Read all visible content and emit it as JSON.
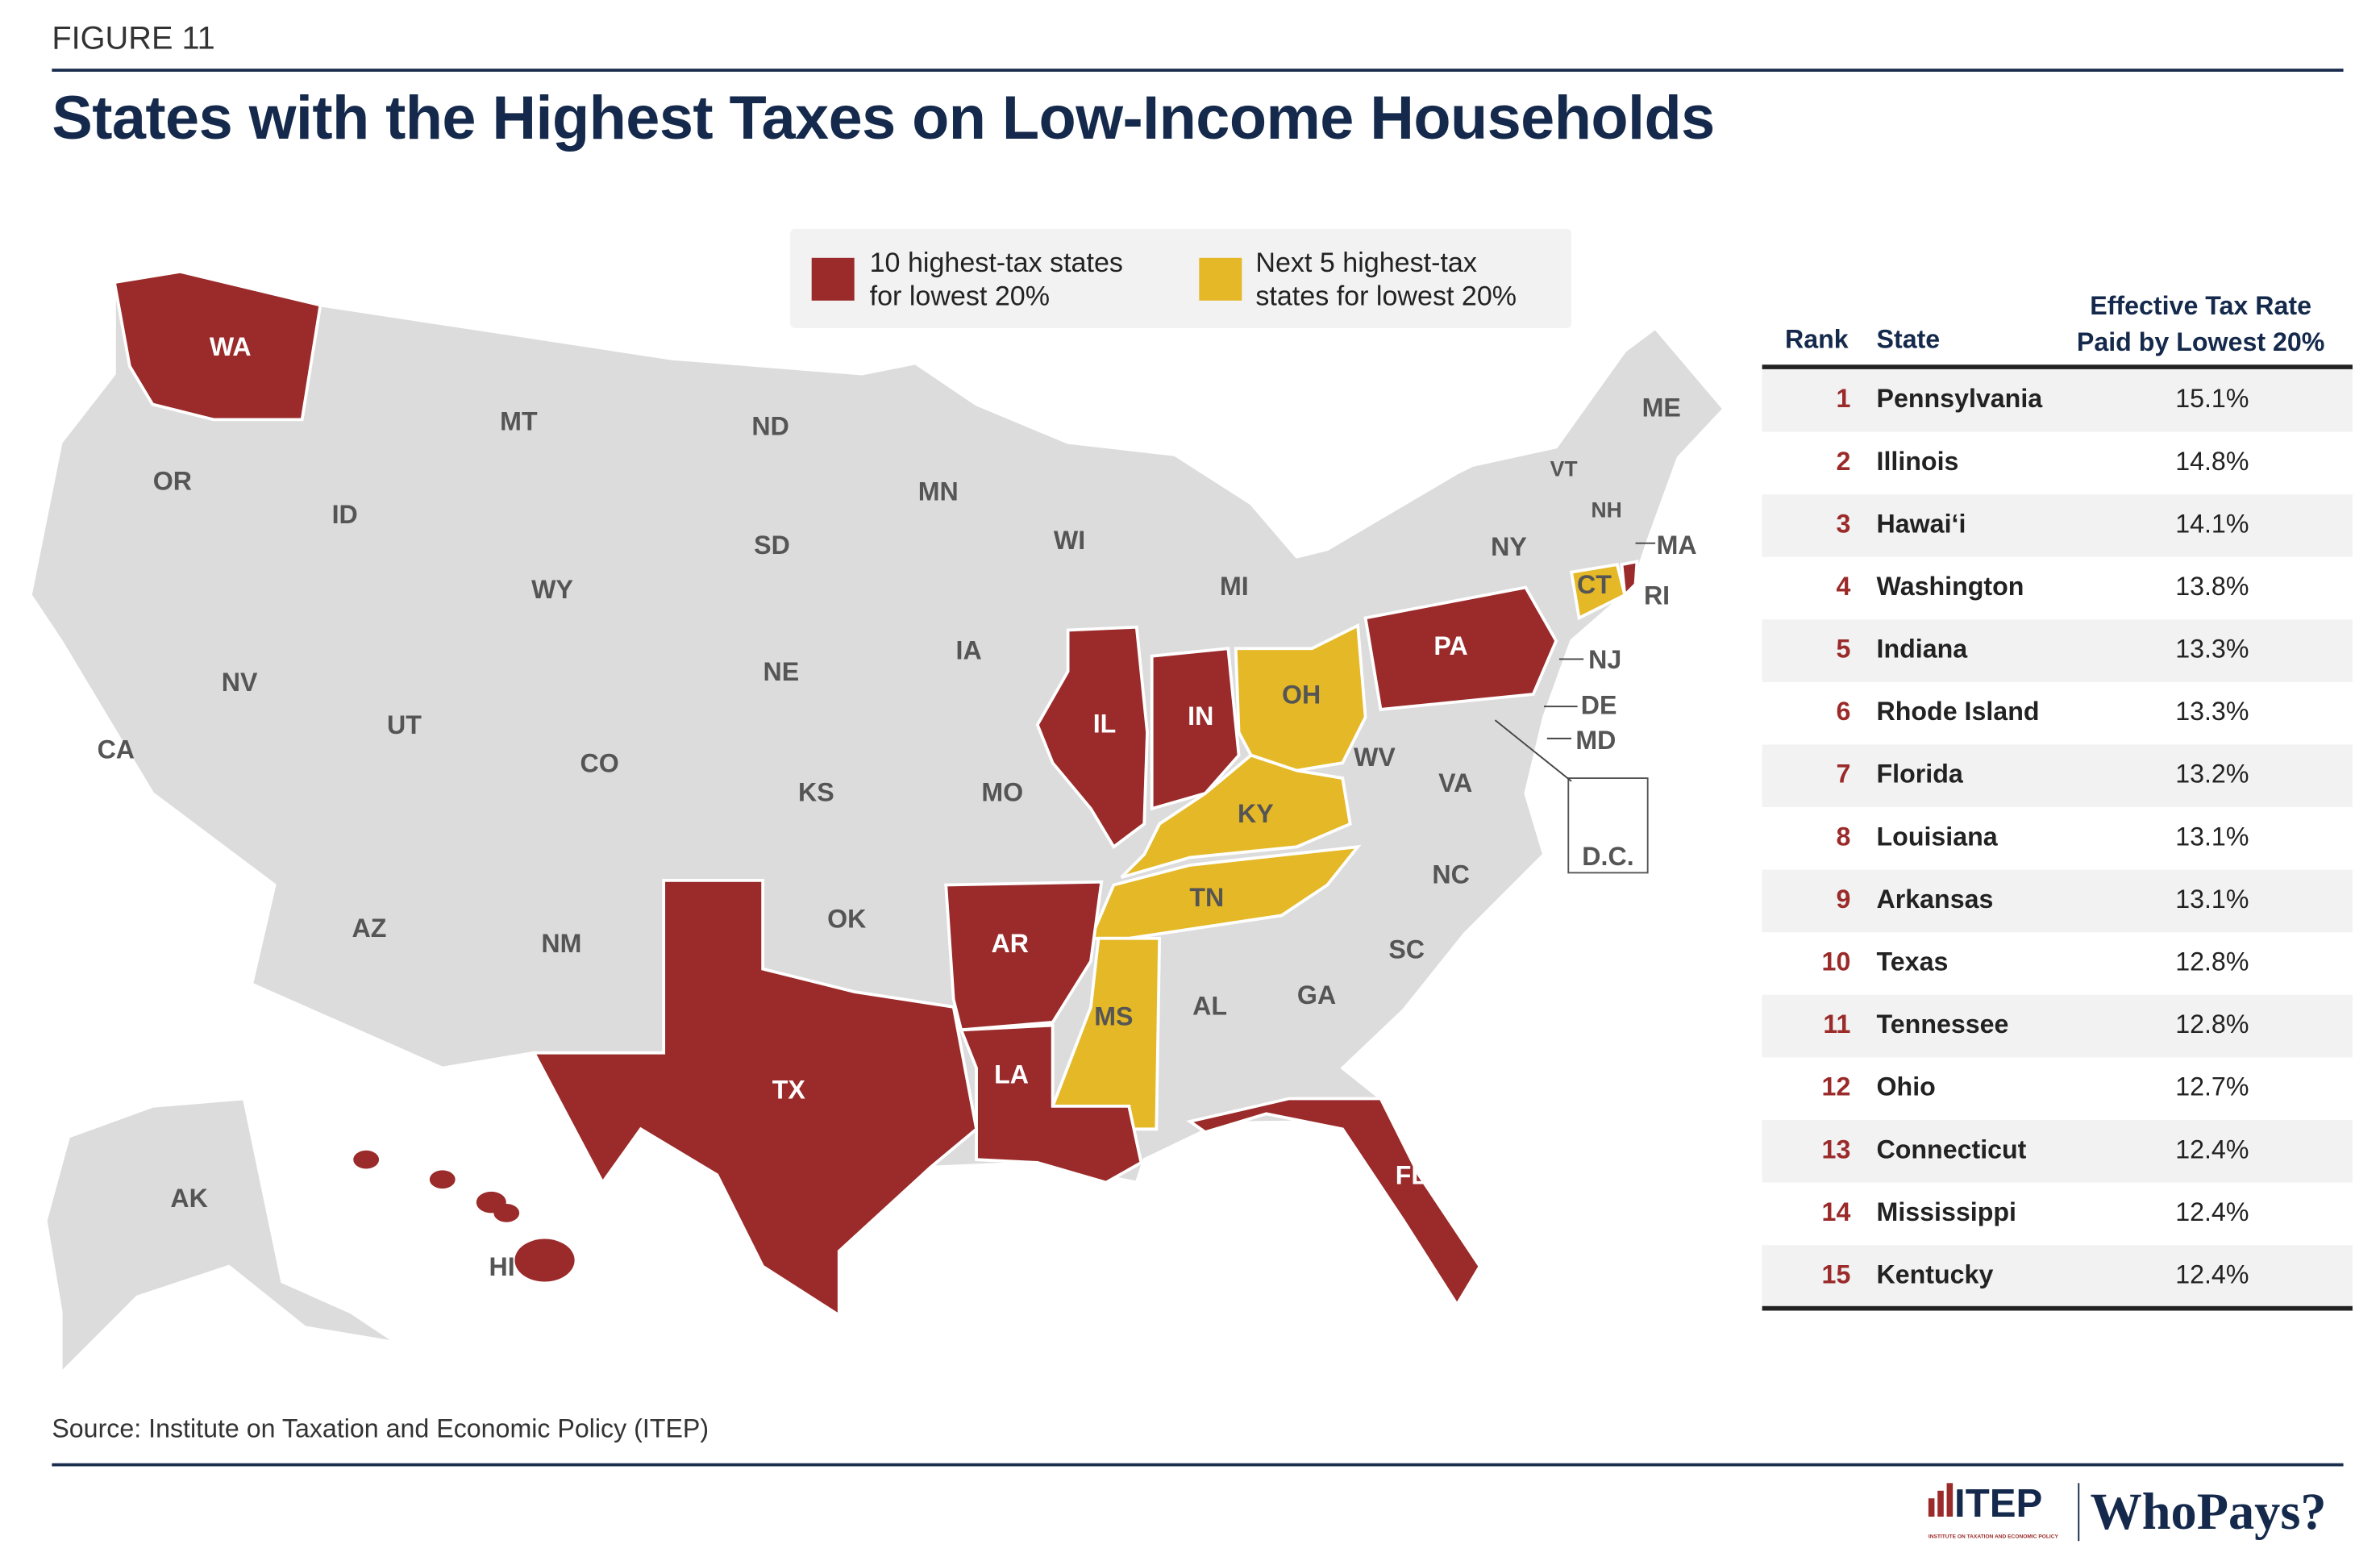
{
  "figure_label": "FIGURE 11",
  "title": "States with the Highest Taxes on Low-Income Households",
  "source": "Source: Institute on Taxation and Economic Policy (ITEP)",
  "colors": {
    "top10": "#9b2a2a",
    "next5": "#e4b826",
    "other": "#dcdcdc",
    "navy": "#14294b"
  },
  "legend": {
    "top10_line1": "10 highest-tax states",
    "top10_line2": "for lowest 20%",
    "next5_line1": "Next 5 highest-tax",
    "next5_line2": "states for lowest 20%"
  },
  "chart_data": {
    "type": "table",
    "map_type": "choropleth",
    "title": "States with the Highest Taxes on Low-Income Households",
    "columns": [
      "Rank",
      "State",
      "Effective Tax Rate Paid by Lowest 20%"
    ],
    "header_rank": "Rank",
    "header_state": "State",
    "header_rate_line1": "Effective Tax Rate",
    "header_rate_line2": "Paid by Lowest 20%",
    "rows": [
      {
        "rank": "1",
        "state": "Pennsylvania",
        "rate": "15.1%"
      },
      {
        "rank": "2",
        "state": "Illinois",
        "rate": "14.8%"
      },
      {
        "rank": "3",
        "state": "Hawaiʻi",
        "rate": "14.1%"
      },
      {
        "rank": "4",
        "state": "Washington",
        "rate": "13.8%"
      },
      {
        "rank": "5",
        "state": "Indiana",
        "rate": "13.3%"
      },
      {
        "rank": "6",
        "state": "Rhode Island",
        "rate": "13.3%"
      },
      {
        "rank": "7",
        "state": "Florida",
        "rate": "13.2%"
      },
      {
        "rank": "8",
        "state": "Louisiana",
        "rate": "13.1%"
      },
      {
        "rank": "9",
        "state": "Arkansas",
        "rate": "13.1%"
      },
      {
        "rank": "10",
        "state": "Texas",
        "rate": "12.8%"
      },
      {
        "rank": "11",
        "state": "Tennessee",
        "rate": "12.8%"
      },
      {
        "rank": "12",
        "state": "Ohio",
        "rate": "12.7%"
      },
      {
        "rank": "13",
        "state": "Connecticut",
        "rate": "12.4%"
      },
      {
        "rank": "14",
        "state": "Mississippi",
        "rate": "12.4%"
      },
      {
        "rank": "15",
        "state": "Kentucky",
        "rate": "12.4%"
      }
    ],
    "top10": [
      "PA",
      "IL",
      "HI",
      "WA",
      "IN",
      "RI",
      "FL",
      "LA",
      "AR",
      "TX"
    ],
    "next5": [
      "TN",
      "OH",
      "CT",
      "MS",
      "KY"
    ],
    "state_labels": [
      "WA",
      "OR",
      "CA",
      "ID",
      "NV",
      "MT",
      "WY",
      "UT",
      "AZ",
      "ND",
      "SD",
      "NE",
      "CO",
      "NM",
      "KS",
      "OK",
      "TX",
      "MN",
      "IA",
      "MO",
      "AR",
      "LA",
      "WI",
      "IL",
      "MI",
      "IN",
      "OH",
      "KY",
      "TN",
      "MS",
      "AL",
      "GA",
      "FL",
      "SC",
      "NC",
      "VA",
      "WV",
      "PA",
      "NY",
      "VT",
      "NH",
      "ME",
      "MA",
      "RI",
      "CT",
      "NJ",
      "DE",
      "MD",
      "D.C.",
      "AK",
      "HI"
    ]
  },
  "logo": {
    "itep": "ITEP",
    "itep_sub": "INSTITUTE ON TAXATION AND ECONOMIC POLICY",
    "whopays": "WhoPays?"
  }
}
